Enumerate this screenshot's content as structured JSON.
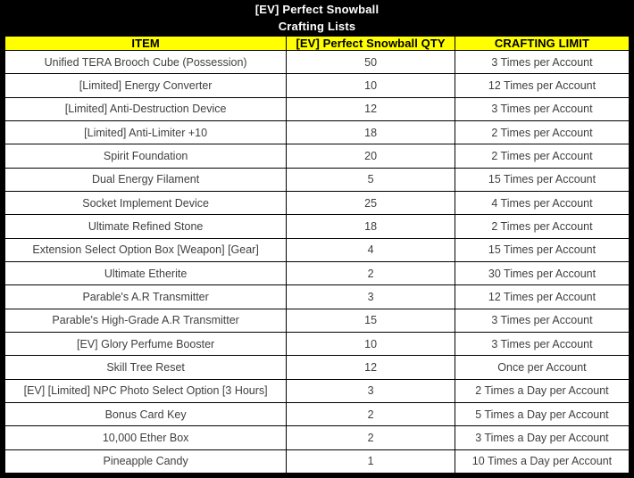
{
  "chart_data": {
    "type": "table",
    "title": "[EV] Perfect Snowball",
    "subtitle": "Crafting Lists",
    "columns": [
      "ITEM",
      "[EV] Perfect Snowball QTY",
      "CRAFTING LIMIT"
    ],
    "rows": [
      [
        "Unified TERA Brooch Cube (Possession)",
        "50",
        "3 Times per Account"
      ],
      [
        "[Limited] Energy Converter",
        "10",
        "12 Times per Account"
      ],
      [
        "[Limited] Anti-Destruction Device",
        "12",
        "3 Times per Account"
      ],
      [
        "[Limited] Anti-Limiter +10",
        "18",
        "2 Times per Account"
      ],
      [
        "Spirit Foundation",
        "20",
        "2 Times per Account"
      ],
      [
        "Dual Energy Filament",
        "5",
        "15 Times per Account"
      ],
      [
        "Socket Implement Device",
        "25",
        "4 Times per Account"
      ],
      [
        "Ultimate Refined Stone",
        "18",
        "2 Times per Account"
      ],
      [
        "Extension Select Option Box [Weapon] [Gear]",
        "4",
        "15 Times per Account"
      ],
      [
        "Ultimate Etherite",
        "2",
        "30 Times per Account"
      ],
      [
        "Parable's A.R Transmitter",
        "3",
        "12 Times per Account"
      ],
      [
        "Parable's High-Grade A.R Transmitter",
        "15",
        "3 Times per Account"
      ],
      [
        "[EV] Glory Perfume Booster",
        "10",
        "3 Times per Account"
      ],
      [
        "Skill Tree Reset",
        "12",
        "Once per Account"
      ],
      [
        "[EV] [Limited] NPC Photo Select Option [3 Hours]",
        "3",
        "2 Times a Day per Account"
      ],
      [
        "Bonus Card Key",
        "2",
        "5 Times a Day per Account"
      ],
      [
        "10,000 Ether Box",
        "2",
        "3 Times a Day per Account"
      ],
      [
        "Pineapple Candy",
        "1",
        "10 Times a Day per Account"
      ]
    ],
    "layout_hints": {
      "header_background": "#ffff00",
      "frame_color": "#000000",
      "title_background": "#000000",
      "title_text_color": "#ffffff",
      "row_text_color": "#3f3f3f",
      "grid": true
    }
  }
}
